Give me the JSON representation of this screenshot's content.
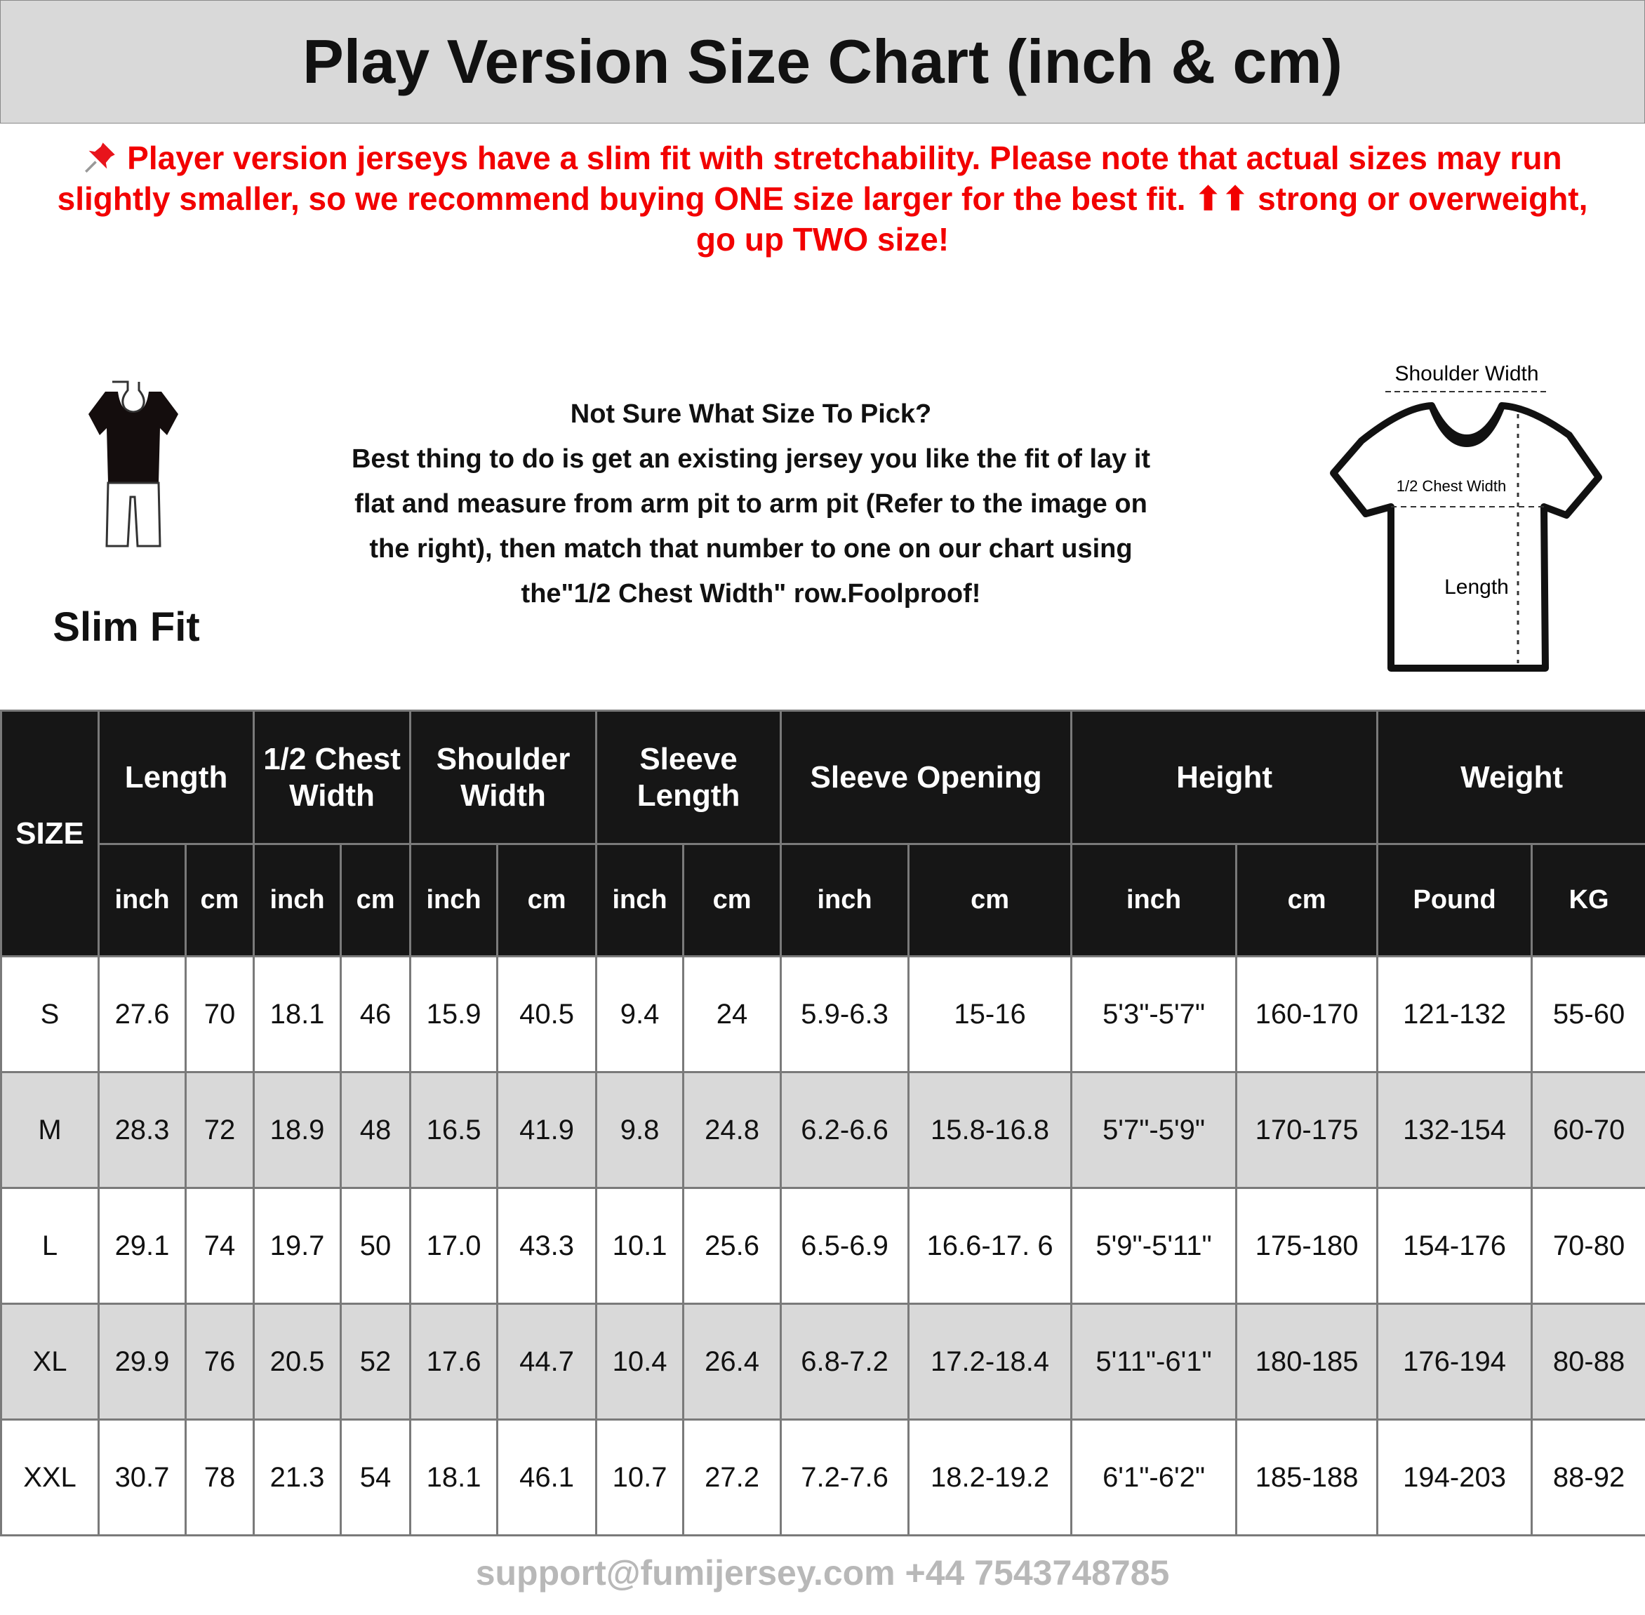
{
  "title": "Play Version Size Chart (inch & cm)",
  "notice": {
    "icon": "pushpin-icon",
    "lines": [
      "Player version jerseys have a slim fit with stretchability. Please note that actual sizes may run",
      "slightly smaller, so we recommend buying ONE size larger for the best fit. ⬆⬆ strong or overweight,",
      "go up TWO size!"
    ],
    "color": "#f20000"
  },
  "fit": {
    "label": "Slim Fit",
    "icon": "slim-fit-mannequin-icon"
  },
  "guide": {
    "lines": [
      "Not Sure What Size To Pick?",
      "Best thing to do is get an existing jersey you like the fit of lay it",
      "flat and measure from arm pit to arm pit (Refer to the image on",
      "the right), then match that number to one on our chart using",
      "the\"1/2 Chest Width\" row.Foolproof!"
    ]
  },
  "diagram": {
    "shoulder": "Shoulder Width",
    "chest": "1/2 Chest Width",
    "length": "Length",
    "icon": "tshirt-measurement-icon"
  },
  "watermark": "support@fumijersey.com +44 7543748785",
  "table": {
    "size_header": "SIZE",
    "groups": [
      "Length",
      "1/2 Chest Width",
      "Shoulder Width",
      "Sleeve Length",
      "Sleeve Opening",
      "Height",
      "Weight"
    ],
    "units": [
      "inch",
      "cm",
      "inch",
      "cm",
      "inch",
      "cm",
      "inch",
      "cm",
      "inch",
      "cm",
      "inch",
      "cm",
      "Pound",
      "KG"
    ],
    "rows": [
      [
        "S",
        "27.6",
        "70",
        "18.1",
        "46",
        "15.9",
        "40.5",
        "9.4",
        "24",
        "5.9-6.3",
        "15-16",
        "5'3\"-5'7\"",
        "160-170",
        "121-132",
        "55-60"
      ],
      [
        "M",
        "28.3",
        "72",
        "18.9",
        "48",
        "16.5",
        "41.9",
        "9.8",
        "24.8",
        "6.2-6.6",
        "15.8-16.8",
        "5'7\"-5'9\"",
        "170-175",
        "132-154",
        "60-70"
      ],
      [
        "L",
        "29.1",
        "74",
        "19.7",
        "50",
        "17.0",
        "43.3",
        "10.1",
        "25.6",
        "6.5-6.9",
        "16.6-17. 6",
        "5'9\"-5'11\"",
        "175-180",
        "154-176",
        "70-80"
      ],
      [
        "XL",
        "29.9",
        "76",
        "20.5",
        "52",
        "17.6",
        "44.7",
        "10.4",
        "26.4",
        "6.8-7.2",
        "17.2-18.4",
        "5'11\"-6'1\"",
        "180-185",
        "176-194",
        "80-88"
      ],
      [
        "XXL",
        "30.7",
        "78",
        "21.3",
        "54",
        "18.1",
        "46.1",
        "10.7",
        "27.2",
        "7.2-7.6",
        "18.2-19.2",
        "6'1\"-6'2\"",
        "185-188",
        "194-203",
        "88-92"
      ]
    ]
  }
}
